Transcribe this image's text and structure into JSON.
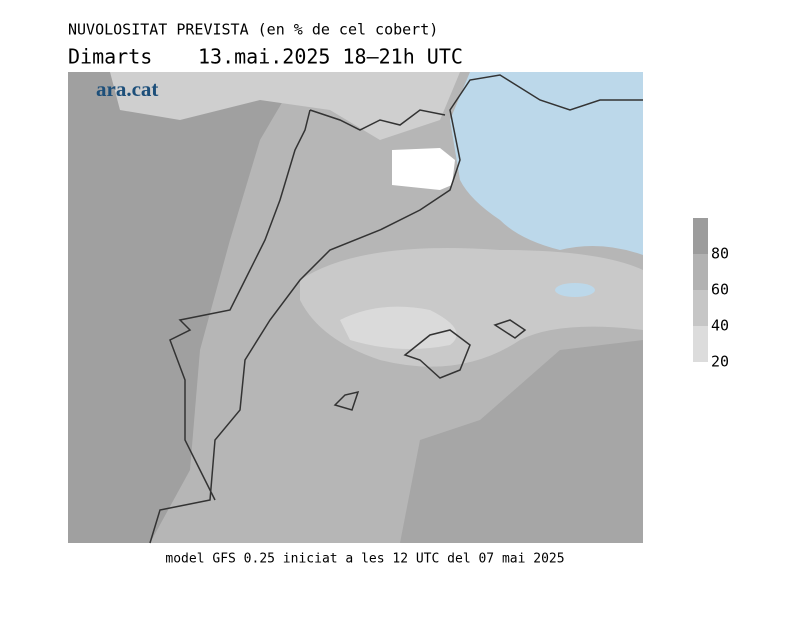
{
  "header": {
    "title": "NUVOLOSITAT PREVISTA (en % de cel cobert)",
    "day": "Dimarts",
    "date": "13.mai.2025 18–21h UTC"
  },
  "logo": "ara.cat",
  "legend": {
    "ticks": [
      20,
      40,
      60,
      80
    ],
    "colors": [
      "#dcdcdc",
      "#c6c6c6",
      "#b2b2b2",
      "#9c9c9c"
    ]
  },
  "footer": "model GFS 0.25 iniciat a les 12 UTC del 07 mai 2025"
}
